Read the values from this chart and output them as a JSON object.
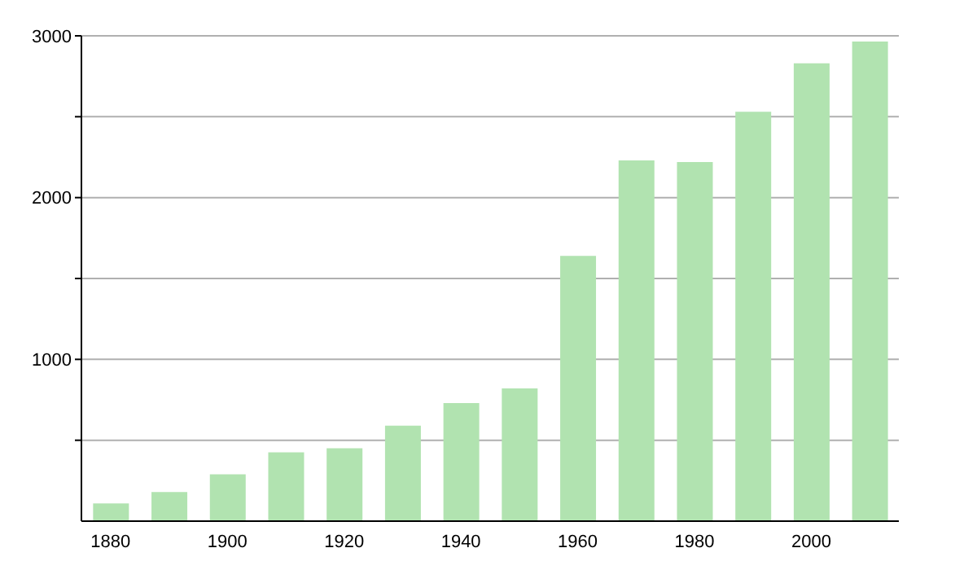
{
  "chart_data": {
    "type": "bar",
    "categories": [
      "1880",
      null,
      "1900",
      null,
      "1920",
      null,
      "1940",
      null,
      "1960",
      null,
      "1980",
      null,
      "2000",
      null
    ],
    "values": [
      110,
      180,
      290,
      425,
      450,
      590,
      730,
      820,
      1640,
      2230,
      2220,
      2530,
      2830,
      2965
    ],
    "color": "#b1e3b0",
    "ylim": [
      0,
      3000
    ],
    "yticks": [
      {
        "value": 500,
        "label": null
      },
      1000,
      {
        "value": 1500,
        "label": null
      },
      2000,
      {
        "value": 2500,
        "label": null
      },
      3000
    ],
    "grid": "y"
  }
}
